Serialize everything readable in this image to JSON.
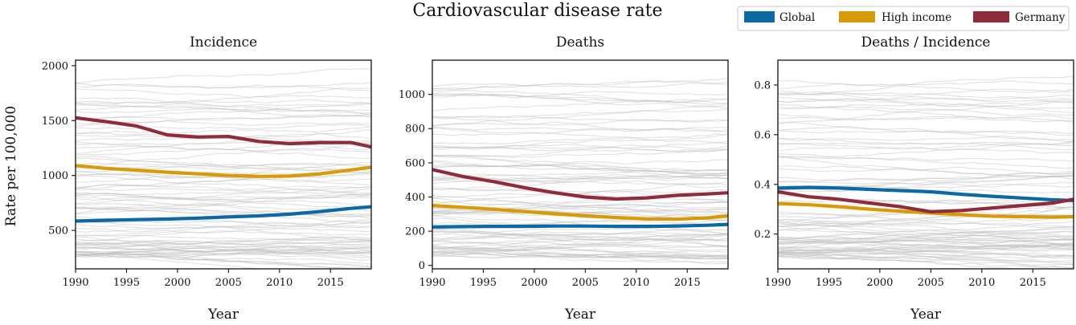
{
  "chart_data": {
    "title": "Cardiovascular disease rate",
    "ylabel": "Rate per 100,000",
    "legend": {
      "placement": "top-right",
      "entries": [
        {
          "name": "Global",
          "color": "#0b6aa6"
        },
        {
          "name": "High income",
          "color": "#d99a0a"
        },
        {
          "name": "Germany",
          "color": "#8e2c3a"
        }
      ]
    },
    "background_lines_color": "#bdbdbd",
    "panels": [
      {
        "type": "line",
        "title": "Incidence",
        "xlabel": "Year",
        "xlim": [
          1990,
          2019
        ],
        "ylim": [
          150,
          2050
        ],
        "xticks": [
          1990,
          1995,
          2000,
          2005,
          2010,
          2015
        ],
        "yticks": [
          500,
          1000,
          1500,
          2000
        ],
        "x": [
          1990,
          1993,
          1996,
          1999,
          2002,
          2005,
          2008,
          2011,
          2014,
          2017,
          2019
        ],
        "series": [
          {
            "name": "Global",
            "values": [
              585,
              592,
              598,
              603,
              612,
              623,
              632,
              648,
              672,
              700,
              715
            ]
          },
          {
            "name": "High income",
            "values": [
              1090,
              1065,
              1048,
              1030,
              1015,
              1000,
              992,
              995,
              1015,
              1050,
              1075
            ]
          },
          {
            "name": "Germany",
            "values": [
              1525,
              1490,
              1450,
              1370,
              1350,
              1355,
              1310,
              1290,
              1300,
              1300,
              1260
            ]
          }
        ]
      },
      {
        "type": "line",
        "title": "Deaths",
        "xlabel": "Year",
        "xlim": [
          1990,
          2019
        ],
        "ylim": [
          -20,
          1200
        ],
        "xticks": [
          1990,
          1995,
          2000,
          2005,
          2010,
          2015
        ],
        "yticks": [
          0,
          200,
          400,
          600,
          800,
          1000
        ],
        "x": [
          1990,
          1993,
          1996,
          1999,
          2002,
          2005,
          2008,
          2011,
          2014,
          2017,
          2019
        ],
        "series": [
          {
            "name": "Global",
            "values": [
              225,
              227,
              228,
              228,
              230,
              230,
              228,
              228,
              230,
              235,
              240
            ]
          },
          {
            "name": "High income",
            "values": [
              350,
              340,
              328,
              315,
              302,
              290,
              280,
              272,
              270,
              278,
              290
            ]
          },
          {
            "name": "Germany",
            "values": [
              560,
              520,
              490,
              455,
              425,
              400,
              388,
              395,
              410,
              418,
              425
            ]
          }
        ]
      },
      {
        "type": "line",
        "title": "Deaths / Incidence",
        "xlabel": "Year",
        "xlim": [
          1990,
          2019
        ],
        "ylim": [
          0.06,
          0.9
        ],
        "xticks": [
          1990,
          1995,
          2000,
          2005,
          2010,
          2015
        ],
        "yticks": [
          0.2,
          0.4,
          0.6,
          0.8
        ],
        "x": [
          1990,
          1993,
          1996,
          1999,
          2002,
          2005,
          2008,
          2011,
          2014,
          2017,
          2019
        ],
        "series": [
          {
            "name": "Global",
            "values": [
              0.385,
              0.388,
              0.385,
              0.38,
              0.375,
              0.37,
              0.36,
              0.352,
              0.345,
              0.338,
              0.335
            ]
          },
          {
            "name": "High income",
            "values": [
              0.323,
              0.318,
              0.31,
              0.3,
              0.292,
              0.285,
              0.278,
              0.272,
              0.27,
              0.268,
              0.27
            ]
          },
          {
            "name": "Germany",
            "values": [
              0.37,
              0.35,
              0.34,
              0.325,
              0.31,
              0.29,
              0.295,
              0.305,
              0.315,
              0.325,
              0.34
            ]
          }
        ]
      }
    ]
  }
}
